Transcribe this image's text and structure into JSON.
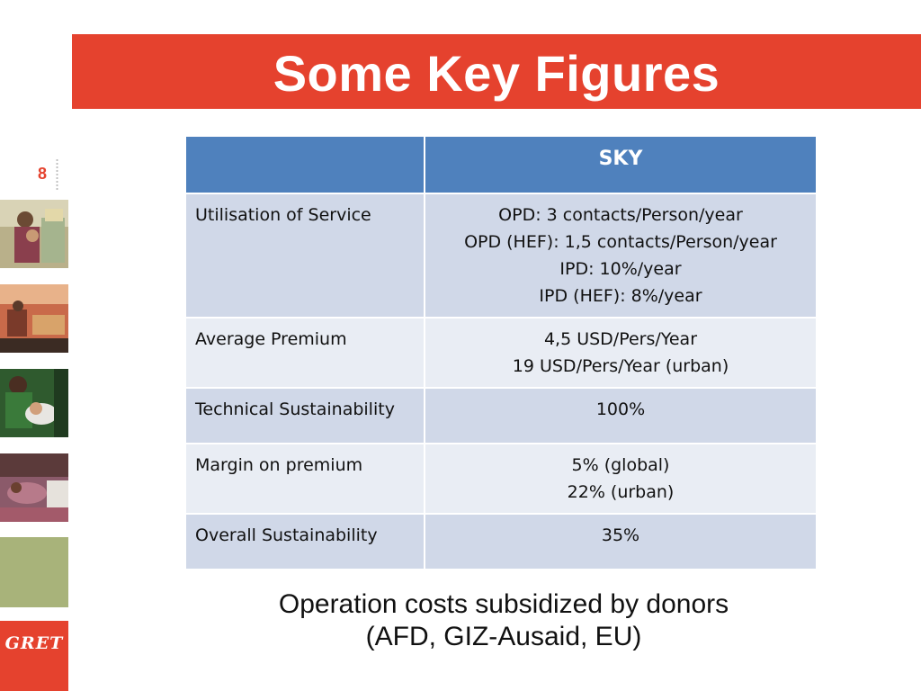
{
  "slide": {
    "title": "Some Key Figures",
    "page_number": "8"
  },
  "sidebar": {
    "logo_text": "GRET"
  },
  "table": {
    "headers": [
      "",
      "SKY"
    ],
    "rows": [
      {
        "label": "Utilisation of Service",
        "values": [
          "OPD: 3 contacts/Person/year",
          "OPD (HEF): 1,5 contacts/Person/year",
          "IPD: 10%/year",
          "IPD (HEF): 8%/year"
        ]
      },
      {
        "label": "Average Premium",
        "values": [
          "4,5 USD/Pers/Year",
          "19 USD/Pers/Year (urban)"
        ]
      },
      {
        "label": "Technical Sustainability",
        "values": [
          "100%"
        ]
      },
      {
        "label": "Margin on premium",
        "values": [
          "5% (global)",
          "22% (urban)"
        ]
      },
      {
        "label": "Overall Sustainability",
        "values": [
          "35%"
        ]
      }
    ]
  },
  "footer": {
    "line1": "Operation costs subsidized by donors",
    "line2": "(AFD, GIZ-Ausaid, EU)"
  },
  "colors": {
    "accent": "#e5422e",
    "table_header": "#4f81bd",
    "row_dark": "#d0d8e8",
    "row_light": "#e9edf4",
    "green_block": "#a8b37a"
  }
}
